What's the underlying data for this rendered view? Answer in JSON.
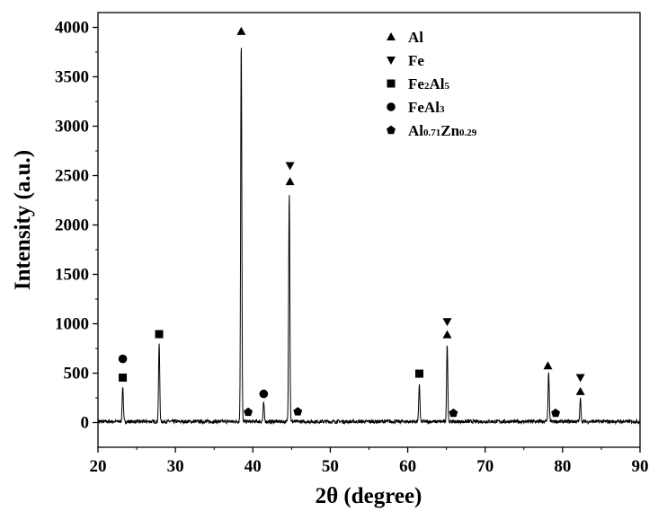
{
  "chart_data": {
    "type": "line",
    "xlabel": "2θ (degree)",
    "ylabel": "Intensity (a.u.)",
    "xlim": [
      20,
      90
    ],
    "ylim": [
      -250,
      4150
    ],
    "xticks": [
      20,
      30,
      40,
      50,
      60,
      70,
      80,
      90
    ],
    "yticks": [
      0,
      500,
      1000,
      1500,
      2000,
      2500,
      3000,
      3500,
      4000
    ],
    "grid": false,
    "legend_position": "top-right",
    "baseline": 10,
    "peaks": [
      {
        "x": 23.2,
        "y": 370
      },
      {
        "x": 27.9,
        "y": 800
      },
      {
        "x": 38.5,
        "y": 3880
      },
      {
        "x": 41.4,
        "y": 200
      },
      {
        "x": 44.7,
        "y": 2340
      },
      {
        "x": 61.5,
        "y": 390
      },
      {
        "x": 65.1,
        "y": 800
      },
      {
        "x": 78.2,
        "y": 500
      },
      {
        "x": 82.3,
        "y": 240
      }
    ],
    "markers": [
      {
        "phase": "Fe2Al5",
        "x": 23.2,
        "y": 455
      },
      {
        "phase": "FeAl3",
        "x": 23.2,
        "y": 645
      },
      {
        "phase": "Fe2Al5",
        "x": 27.9,
        "y": 895
      },
      {
        "phase": "Al",
        "x": 38.5,
        "y": 3960
      },
      {
        "phase": "Al0.71Zn0.29",
        "x": 39.4,
        "y": 105
      },
      {
        "phase": "FeAl3",
        "x": 41.4,
        "y": 290
      },
      {
        "phase": "Al",
        "x": 44.8,
        "y": 2440
      },
      {
        "phase": "Fe",
        "x": 44.8,
        "y": 2600
      },
      {
        "phase": "Al0.71Zn0.29",
        "x": 45.8,
        "y": 110
      },
      {
        "phase": "Fe2Al5",
        "x": 61.5,
        "y": 495
      },
      {
        "phase": "Al",
        "x": 65.1,
        "y": 890
      },
      {
        "phase": "Fe",
        "x": 65.1,
        "y": 1020
      },
      {
        "phase": "Al0.71Zn0.29",
        "x": 65.9,
        "y": 95
      },
      {
        "phase": "Al",
        "x": 78.1,
        "y": 575
      },
      {
        "phase": "Al0.71Zn0.29",
        "x": 79.1,
        "y": 95
      },
      {
        "phase": "Al",
        "x": 82.3,
        "y": 315
      },
      {
        "phase": "Fe",
        "x": 82.3,
        "y": 455
      }
    ],
    "legend": [
      {
        "phase": "Al",
        "symbol": "triangle-up",
        "main": "Al",
        "sub": "",
        "tail": "",
        "sub2": ""
      },
      {
        "phase": "Fe",
        "symbol": "triangle-down",
        "main": "Fe",
        "sub": "",
        "tail": "",
        "sub2": ""
      },
      {
        "phase": "Fe2Al5",
        "symbol": "square",
        "main": "Fe",
        "sub": "2",
        "tail": "Al",
        "sub2": "5"
      },
      {
        "phase": "FeAl3",
        "symbol": "circle",
        "main": "FeAl",
        "sub": "3",
        "tail": "",
        "sub2": ""
      },
      {
        "phase": "Al0.71Zn0.29",
        "symbol": "pentagon",
        "main": "Al",
        "sub": "0.71",
        "tail": "Zn",
        "sub2": "0.29"
      }
    ],
    "line_color": "#000000"
  }
}
